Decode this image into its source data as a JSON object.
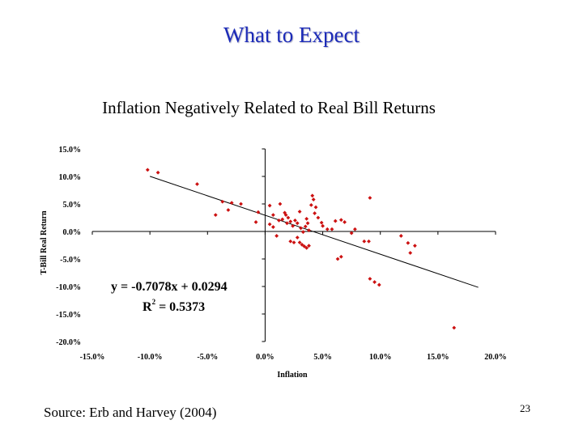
{
  "slide": {
    "title": "What to Expect",
    "subtitle": "Inflation Negatively Related to Real Bill Returns",
    "source": "Source: Erb and Harvey (2004)",
    "page_number": "23"
  },
  "chart_data": {
    "type": "scatter",
    "title": "Inflation Negatively Related to Real Bill Returns",
    "xlabel": "Inflation",
    "ylabel": "T-Bill Real Return",
    "xlim": [
      -0.15,
      0.2
    ],
    "ylim": [
      -0.2,
      0.15
    ],
    "x_ticks": [
      -0.15,
      -0.1,
      -0.05,
      0.0,
      0.05,
      0.1,
      0.15,
      0.2
    ],
    "x_tick_labels": [
      "-15.0%",
      "-10.0%",
      "-5.0%",
      "0.0%",
      "5.0%",
      "10.0%",
      "15.0%",
      "20.0%"
    ],
    "y_ticks": [
      0.15,
      0.1,
      0.05,
      0.0,
      -0.05,
      -0.1,
      -0.15,
      -0.2
    ],
    "y_tick_labels": [
      "15.0%",
      "10.0%",
      "5.0%",
      "0.0%",
      "-5.0%",
      "-10.0%",
      "-15.0%",
      "-20.0%"
    ],
    "point_color": "#cc1111",
    "trendline": {
      "slope": -0.7078,
      "intercept": 0.0294,
      "x_range": [
        -0.1,
        0.185
      ]
    },
    "equation": "y = -0.7078x + 0.0294",
    "r2_label": "R",
    "r2_exp": "2",
    "r2_value": " = 0.5373",
    "points": [
      [
        -0.102,
        0.112
      ],
      [
        -0.093,
        0.107
      ],
      [
        -0.059,
        0.086
      ],
      [
        -0.043,
        0.03
      ],
      [
        -0.037,
        0.054
      ],
      [
        -0.032,
        0.039
      ],
      [
        -0.029,
        0.052
      ],
      [
        -0.021,
        0.05
      ],
      [
        -0.008,
        0.017
      ],
      [
        -0.006,
        0.035
      ],
      [
        0.004,
        0.047
      ],
      [
        0.007,
        0.03
      ],
      [
        0.004,
        0.013
      ],
      [
        0.007,
        0.008
      ],
      [
        0.01,
        -0.008
      ],
      [
        0.012,
        0.02
      ],
      [
        0.013,
        0.05
      ],
      [
        0.015,
        0.022
      ],
      [
        0.017,
        0.034
      ],
      [
        0.018,
        0.03
      ],
      [
        0.019,
        0.015
      ],
      [
        0.02,
        0.025
      ],
      [
        0.022,
        0.018
      ],
      [
        0.024,
        0.01
      ],
      [
        0.026,
        0.02
      ],
      [
        0.028,
        0.015
      ],
      [
        0.03,
        0.036
      ],
      [
        0.031,
        0.006
      ],
      [
        0.033,
        -0.001
      ],
      [
        0.035,
        0.009
      ],
      [
        0.036,
        0.023
      ],
      [
        0.037,
        0.015
      ],
      [
        0.038,
        0.002
      ],
      [
        0.04,
        0.048
      ],
      [
        0.041,
        0.065
      ],
      [
        0.042,
        0.058
      ],
      [
        0.043,
        0.033
      ],
      [
        0.044,
        0.044
      ],
      [
        0.046,
        0.025
      ],
      [
        0.049,
        0.016
      ],
      [
        0.022,
        -0.018
      ],
      [
        0.025,
        -0.02
      ],
      [
        0.03,
        -0.02
      ],
      [
        0.032,
        -0.024
      ],
      [
        0.034,
        -0.027
      ],
      [
        0.036,
        -0.03
      ],
      [
        0.038,
        -0.026
      ],
      [
        0.028,
        -0.011
      ],
      [
        0.05,
        0.01
      ],
      [
        0.054,
        0.004
      ],
      [
        0.058,
        0.004
      ],
      [
        0.061,
        0.019
      ],
      [
        0.066,
        0.021
      ],
      [
        0.069,
        0.017
      ],
      [
        0.075,
        -0.003
      ],
      [
        0.078,
        0.004
      ],
      [
        0.063,
        -0.05
      ],
      [
        0.066,
        -0.046
      ],
      [
        0.086,
        -0.018
      ],
      [
        0.09,
        -0.018
      ],
      [
        0.091,
        0.061
      ],
      [
        0.091,
        -0.086
      ],
      [
        0.095,
        -0.092
      ],
      [
        0.099,
        -0.097
      ],
      [
        0.118,
        -0.008
      ],
      [
        0.124,
        -0.021
      ],
      [
        0.126,
        -0.039
      ],
      [
        0.13,
        -0.026
      ],
      [
        0.164,
        -0.175
      ]
    ]
  }
}
